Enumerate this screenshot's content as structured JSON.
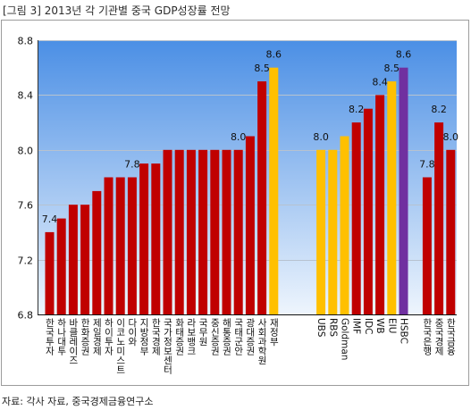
{
  "chart_data": {
    "type": "bar",
    "title": "[그림 3] 2013년 각 기관별 중국 GDP성장률 전망",
    "source": "자료: 각사 자료, 중국경제금융연구소",
    "ylim": [
      6.8,
      8.8
    ],
    "yticks": [
      6.8,
      7.2,
      7.6,
      8.0,
      8.4,
      8.8
    ],
    "grid": true,
    "legend": "none",
    "colors": {
      "red": "#c00000",
      "yellow": "#ffc000",
      "purple": "#7030a0",
      "plot_top": "#4b8fe5",
      "plot_bottom": "#eef5fd"
    },
    "groups": [
      {
        "bars": [
          {
            "label": "한국투자",
            "value": 7.4,
            "color": "red",
            "value_label": "7.4"
          },
          {
            "label": "하나대투",
            "value": 7.5,
            "color": "red"
          },
          {
            "label": "바클레이즈",
            "value": 7.6,
            "color": "red"
          },
          {
            "label": "한화증권",
            "value": 7.6,
            "color": "red"
          },
          {
            "label": "제일경제",
            "value": 7.7,
            "color": "red"
          },
          {
            "label": "하이투자",
            "value": 7.8,
            "color": "red"
          },
          {
            "label": "이코노미스트",
            "value": 7.8,
            "color": "red"
          },
          {
            "label": "다이와",
            "value": 7.8,
            "color": "red",
            "value_label": "7.8"
          },
          {
            "label": "지방정부",
            "value": 7.9,
            "color": "red"
          },
          {
            "label": "한국경제",
            "value": 7.9,
            "color": "red"
          },
          {
            "label": "국가정보센터",
            "value": 8.0,
            "color": "red"
          },
          {
            "label": "화태증권",
            "value": 8.0,
            "color": "red"
          },
          {
            "label": "라보뱅크",
            "value": 8.0,
            "color": "red"
          },
          {
            "label": "국무원",
            "value": 8.0,
            "color": "red"
          },
          {
            "label": "중신증권",
            "value": 8.0,
            "color": "red"
          },
          {
            "label": "해통증권",
            "value": 8.0,
            "color": "red"
          },
          {
            "label": "국태군안",
            "value": 8.0,
            "color": "red",
            "value_label": "8.0"
          },
          {
            "label": "광대증권",
            "value": 8.1,
            "color": "red"
          },
          {
            "label": "사회과학원",
            "value": 8.5,
            "color": "red",
            "value_label": "8.5"
          },
          {
            "label": "재정부",
            "value": 8.6,
            "color": "yellow",
            "value_label": "8.6"
          }
        ]
      },
      {
        "bars": [
          {
            "label": "UBS",
            "value": 8.0,
            "color": "yellow",
            "value_label": "8.0"
          },
          {
            "label": "RBS",
            "value": 8.0,
            "color": "yellow"
          },
          {
            "label": "Goldman",
            "value": 8.1,
            "color": "yellow"
          },
          {
            "label": "IMF",
            "value": 8.2,
            "color": "red",
            "value_label": "8.2"
          },
          {
            "label": "IDC",
            "value": 8.3,
            "color": "red"
          },
          {
            "label": "WB",
            "value": 8.4,
            "color": "red",
            "value_label": "8.4"
          },
          {
            "label": "EIU",
            "value": 8.5,
            "color": "yellow",
            "value_label": "8.5"
          },
          {
            "label": "HSBC",
            "value": 8.6,
            "color": "purple",
            "value_label": "8.6"
          }
        ]
      },
      {
        "bars": [
          {
            "label": "한국은행",
            "value": 7.8,
            "color": "red",
            "value_label": "7.8"
          },
          {
            "label": "중국경제",
            "value": 8.2,
            "color": "red",
            "value_label": "8.2"
          },
          {
            "label": "한국금융",
            "value": 8.0,
            "color": "red",
            "value_label": "8.0"
          }
        ]
      }
    ]
  }
}
